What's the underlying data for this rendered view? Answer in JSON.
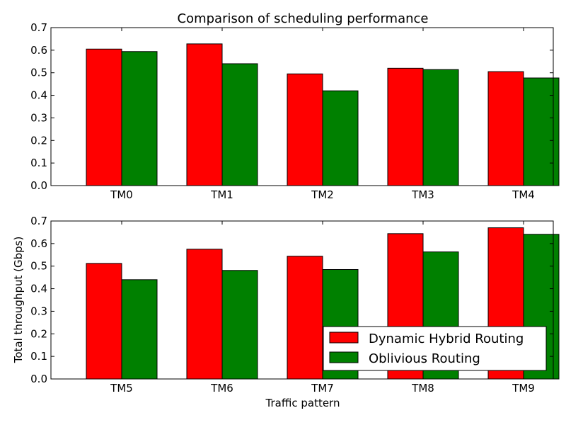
{
  "figure": {
    "title": "Comparison of scheduling performance",
    "ylabel": "Total throughput (Gbps)",
    "xlabel": "Traffic pattern"
  },
  "colors": {
    "dynamic": "#ff0000",
    "oblivious": "#008000",
    "frame": "#000000",
    "background": "#ffffff"
  },
  "chart_data": [
    {
      "type": "bar",
      "title": "Comparison of scheduling performance",
      "xlabel": "",
      "ylabel": "",
      "categories": [
        "TM0",
        "TM1",
        "TM2",
        "TM3",
        "TM4"
      ],
      "ylim": [
        0,
        0.7
      ],
      "yticks": [
        "0.0",
        "0.1",
        "0.2",
        "0.3",
        "0.4",
        "0.5",
        "0.6",
        "0.7"
      ],
      "grid": false,
      "series": [
        {
          "name": "Dynamic Hybrid Routing",
          "color": "#ff0000",
          "values": [
            0.605,
            0.628,
            0.495,
            0.52,
            0.505
          ]
        },
        {
          "name": "Oblivious Routing",
          "color": "#008000",
          "values": [
            0.594,
            0.54,
            0.42,
            0.514,
            0.477
          ]
        }
      ]
    },
    {
      "type": "bar",
      "title": "",
      "xlabel": "Traffic pattern",
      "ylabel": "Total throughput (Gbps)",
      "categories": [
        "TM5",
        "TM6",
        "TM7",
        "TM8",
        "TM9"
      ],
      "ylim": [
        0,
        0.7
      ],
      "yticks": [
        "0.0",
        "0.1",
        "0.2",
        "0.3",
        "0.4",
        "0.5",
        "0.6",
        "0.7"
      ],
      "grid": false,
      "legend_position": "lower-right",
      "series": [
        {
          "name": "Dynamic Hybrid Routing",
          "color": "#ff0000",
          "values": [
            0.512,
            0.575,
            0.544,
            0.644,
            0.67
          ]
        },
        {
          "name": "Oblivious Routing",
          "color": "#008000",
          "values": [
            0.44,
            0.481,
            0.485,
            0.563,
            0.641
          ]
        }
      ]
    }
  ]
}
